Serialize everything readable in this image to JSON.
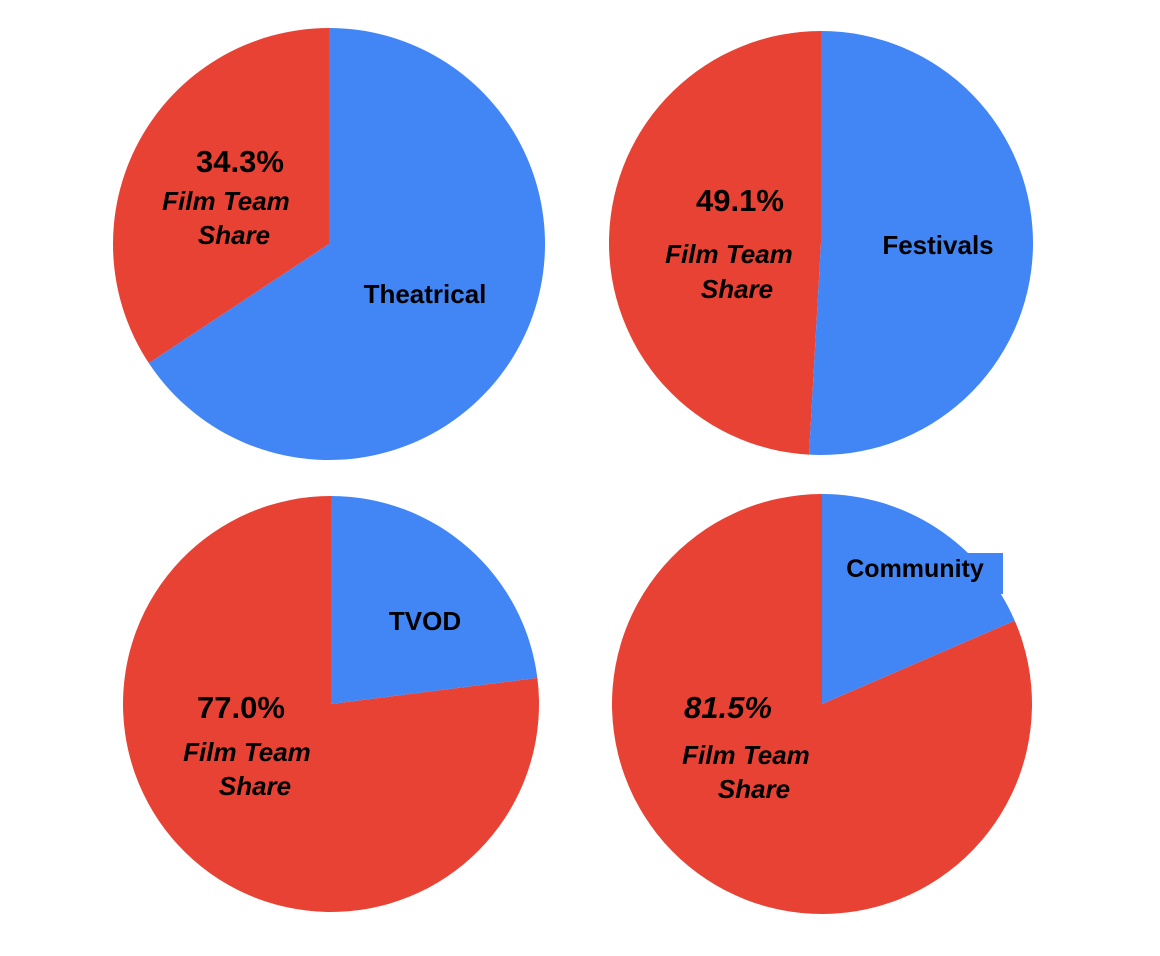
{
  "colors": {
    "film_team_share": "#e84235",
    "category": "#4285f4",
    "background": "#ffffff",
    "text": "#000000"
  },
  "chart_data": [
    {
      "type": "pie",
      "categories": [
        "Film Team Share",
        "Theatrical"
      ],
      "values": [
        34.3,
        65.7
      ],
      "labels": {
        "percent": "34.3%",
        "share_line1": "Film Team",
        "share_line2": "Share",
        "category": "Theatrical"
      },
      "percent_italic": false
    },
    {
      "type": "pie",
      "categories": [
        "Film Team Share",
        "Festivals"
      ],
      "values": [
        49.1,
        50.9
      ],
      "labels": {
        "percent": "49.1%",
        "share_line1": "Film Team",
        "share_line2": "Share",
        "category": "Festivals"
      },
      "percent_italic": false
    },
    {
      "type": "pie",
      "categories": [
        "Film Team Share",
        "TVOD"
      ],
      "values": [
        77.0,
        23.0
      ],
      "labels": {
        "percent": "77.0%",
        "share_line1": "Film Team",
        "share_line2": "Share",
        "category": "TVOD"
      },
      "percent_italic": false
    },
    {
      "type": "pie",
      "categories": [
        "Film Team Share",
        "Community"
      ],
      "values": [
        81.5,
        18.5
      ],
      "labels": {
        "percent": "81.5%",
        "share_line1": "Film Team",
        "share_line2": "Share",
        "category": "Community"
      },
      "percent_italic": true,
      "category_label_boxed": true
    }
  ]
}
